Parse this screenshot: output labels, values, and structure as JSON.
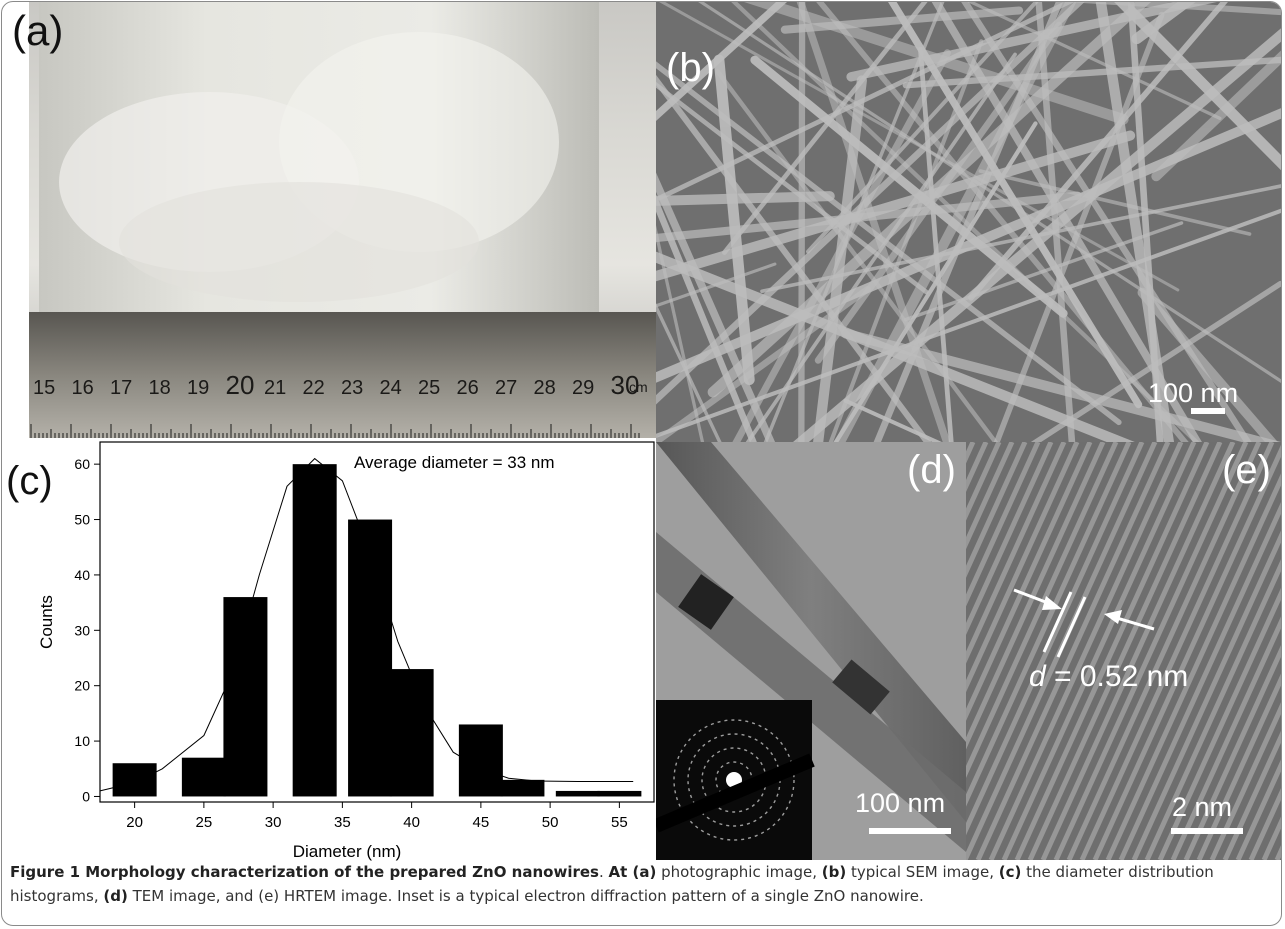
{
  "panels": {
    "a": {
      "label": "(a)",
      "ruler_numbers": [
        "15",
        "16",
        "17",
        "18",
        "19",
        "20",
        "21",
        "22",
        "23",
        "24",
        "25",
        "26",
        "27",
        "28",
        "29",
        "30"
      ],
      "ruler_unit": "cm"
    },
    "b": {
      "label": "(b)",
      "scale": "100 nm"
    },
    "c": {
      "label": "(c)"
    },
    "d": {
      "label": "(d)",
      "scale": "100 nm"
    },
    "e": {
      "label": "(e)",
      "scale": "2 nm",
      "d_prefix": "d",
      "d_value": " = 0.52 nm"
    }
  },
  "chart_data": {
    "type": "bar",
    "title": "",
    "annotation": "Average diameter = 33 nm",
    "xlabel": "Diameter (nm)",
    "ylabel": "Counts",
    "x": [
      20,
      25,
      30,
      35,
      40,
      45,
      50,
      55
    ],
    "y_ticks": [
      0,
      10,
      20,
      30,
      40,
      50,
      60
    ],
    "xlim": [
      17.5,
      57.5
    ],
    "ylim": [
      -1,
      64
    ],
    "categories": [
      20,
      25,
      28,
      33,
      37,
      40,
      45,
      48,
      52,
      55
    ],
    "values": [
      6,
      7,
      36,
      60,
      50,
      23,
      13,
      3,
      1,
      1
    ],
    "fit": [
      [
        17.5,
        1
      ],
      [
        20,
        2.5
      ],
      [
        22,
        5
      ],
      [
        25,
        11
      ],
      [
        27,
        22
      ],
      [
        29,
        40
      ],
      [
        31,
        56
      ],
      [
        33,
        61
      ],
      [
        35,
        57
      ],
      [
        37,
        44
      ],
      [
        39,
        28
      ],
      [
        41,
        16
      ],
      [
        43,
        8
      ],
      [
        45,
        5
      ],
      [
        47,
        3.3
      ],
      [
        49,
        2.8
      ],
      [
        52,
        2.7
      ],
      [
        56,
        2.7
      ]
    ],
    "grid": false
  },
  "caption": {
    "title": "Figure 1 Morphology characterization of the prepared ZnO nanowires",
    "t1": ". ",
    "b_at": "At (a)",
    "t2": " photographic image, ",
    "b_b": "(b)",
    "t3": " typical SEM image, ",
    "b_c": "(c)",
    "t4": " the diameter distribution histograms, ",
    "b_d": "(d)",
    "t5": " TEM image, and (e) HRTEM image. Inset is a typical electron diffraction pattern of a single ZnO nanowire."
  }
}
